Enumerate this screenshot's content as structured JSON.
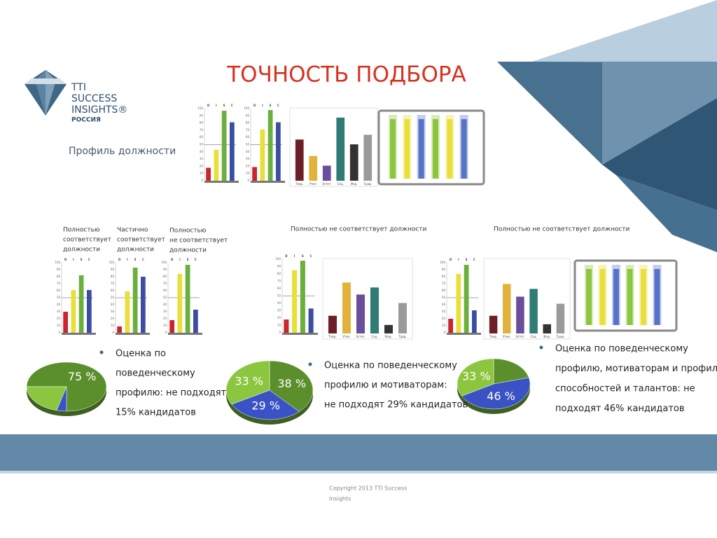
{
  "header": {
    "title": "ТОЧНОСТЬ ПОДБОРА",
    "logo": [
      "TTI",
      "SUCCESS",
      "INSIGHTS®",
      "РОССИЯ"
    ],
    "profile_label": "Профиль должности"
  },
  "captions": [
    {
      "lines": [
        "Полностью",
        "соответствует",
        "должности"
      ]
    },
    {
      "lines": [
        "Частично",
        "соответствует",
        "должности"
      ]
    },
    {
      "lines": [
        "Полностью",
        "не соответствует",
        "должности"
      ]
    },
    {
      "lines": [
        "Полностью не соответствует должности"
      ]
    },
    {
      "lines": [
        "Полностью не соответствует должности"
      ]
    }
  ],
  "bullets": [
    {
      "lines": [
        "Оценка по",
        "поведенческому",
        "профилю: не подходят",
        "15% кандидатов"
      ]
    },
    {
      "lines": [
        "Оценка по поведенческому",
        "профилю и мотиваторам:",
        "не подходят 29% кандидатов"
      ]
    },
    {
      "lines": [
        "Оценка по поведенческому",
        "профилю, мотиваторам и профилю",
        "способностей и талантов: не",
        "подходят 46% кандидатов"
      ]
    }
  ],
  "footer": {
    "lines": [
      "Copyright 2013 TTI Success",
      "Insights"
    ]
  },
  "chart_data": [
    {
      "type": "bar",
      "categories": [
        "D",
        "I",
        "S",
        "C"
      ],
      "values": [
        18,
        43,
        97,
        81
      ],
      "colors": [
        "#c8262e",
        "#e9df3a",
        "#6bb03c",
        "#3b4ea3"
      ],
      "ylim": [
        0,
        100
      ],
      "yticks": [
        0,
        10,
        20,
        30,
        40,
        50,
        60,
        70,
        80,
        90,
        100
      ],
      "midline": 50
    },
    {
      "type": "bar",
      "categories": [
        "D",
        "I",
        "S",
        "C"
      ],
      "values": [
        19,
        71,
        98,
        81
      ],
      "colors": [
        "#c8262e",
        "#e9df3a",
        "#6bb03c",
        "#3b4ea3"
      ],
      "ylim": [
        0,
        100
      ],
      "yticks": [
        0,
        10,
        20,
        30,
        40,
        50,
        60,
        70,
        80,
        90,
        100
      ],
      "midline": 50
    },
    {
      "type": "bar",
      "categories": [
        "Теор.",
        "Утил.",
        "Эстет.",
        "Соц.",
        "Инд.",
        "Трад."
      ],
      "values": [
        60,
        36,
        22,
        92,
        53,
        67
      ],
      "colors": [
        "#6d1f27",
        "#e2b23c",
        "#6a4d9d",
        "#2f7b76",
        "#333333",
        "#9a9a9a"
      ],
      "ylim": [
        0,
        100
      ]
    },
    {
      "type": "bar",
      "categories": [
        "D",
        "I",
        "S",
        "C"
      ],
      "values": [
        30,
        61,
        82,
        61
      ],
      "colors": [
        "#c8262e",
        "#e9df3a",
        "#6bb03c",
        "#3b4ea3"
      ],
      "ylim": [
        0,
        100
      ],
      "yticks": [
        0,
        10,
        20,
        30,
        40,
        50,
        60,
        70,
        80,
        90,
        100
      ],
      "midline": 50
    },
    {
      "type": "bar",
      "categories": [
        "D",
        "I",
        "S",
        "C"
      ],
      "values": [
        9,
        59,
        93,
        80
      ],
      "colors": [
        "#c8262e",
        "#e9df3a",
        "#6bb03c",
        "#3b4ea3"
      ],
      "ylim": [
        0,
        100
      ],
      "yticks": [
        0,
        10,
        20,
        30,
        40,
        50,
        60,
        70,
        80,
        90,
        100
      ],
      "midline": 50
    },
    {
      "type": "bar",
      "categories": [
        "D",
        "I",
        "S",
        "C"
      ],
      "values": [
        18,
        84,
        97,
        33
      ],
      "colors": [
        "#c8262e",
        "#e9df3a",
        "#6bb03c",
        "#3b4ea3"
      ],
      "ylim": [
        0,
        100
      ],
      "yticks": [
        0,
        10,
        20,
        30,
        40,
        50,
        60,
        70,
        80,
        90,
        100
      ],
      "midline": 50
    },
    {
      "type": "bar",
      "categories": [
        "D",
        "I",
        "S",
        "C"
      ],
      "values": [
        18,
        85,
        98,
        33
      ],
      "colors": [
        "#c8262e",
        "#e9df3a",
        "#6bb03c",
        "#3b4ea3"
      ],
      "ylim": [
        0,
        100
      ],
      "yticks": [
        0,
        10,
        20,
        30,
        40,
        50,
        60,
        70,
        80,
        90,
        100
      ],
      "midline": 50
    },
    {
      "type": "bar",
      "categories": [
        "Теор.",
        "Утил.",
        "Эстет.",
        "Соц.",
        "Инд.",
        "Трад."
      ],
      "values": [
        25,
        72,
        55,
        65,
        12,
        43
      ],
      "colors": [
        "#6d1f27",
        "#e2b23c",
        "#6a4d9d",
        "#2f7b76",
        "#333333",
        "#9a9a9a"
      ],
      "ylim": [
        0,
        100
      ]
    },
    {
      "type": "bar",
      "categories": [
        "D",
        "I",
        "S",
        "C"
      ],
      "values": [
        20,
        84,
        97,
        32
      ],
      "colors": [
        "#c8262e",
        "#e9df3a",
        "#6bb03c",
        "#3b4ea3"
      ],
      "ylim": [
        0,
        100
      ],
      "yticks": [
        0,
        10,
        20,
        30,
        40,
        50,
        60,
        70,
        80,
        90,
        100
      ],
      "midline": 50
    },
    {
      "type": "bar",
      "categories": [
        "Теор.",
        "Утил.",
        "Эстет.",
        "Соц.",
        "Инд.",
        "Трад."
      ],
      "values": [
        25,
        70,
        52,
        63,
        13,
        42
      ],
      "colors": [
        "#6d1f27",
        "#e2b23c",
        "#6a4d9d",
        "#2f7b76",
        "#333333",
        "#9a9a9a"
      ],
      "ylim": [
        0,
        100
      ]
    },
    {
      "type": "pie",
      "values": [
        75,
        4,
        21
      ],
      "value_labels": [
        "75 %",
        null,
        null
      ],
      "colors": [
        "#5a8f2c",
        "#3b52c4",
        "#8cc63f"
      ]
    },
    {
      "type": "pie",
      "values": [
        38,
        29,
        33
      ],
      "value_labels": [
        "38 %",
        "29 %",
        "33 %"
      ],
      "colors": [
        "#5a8f2c",
        "#3b52c4",
        "#8cc63f"
      ]
    },
    {
      "type": "pie",
      "values": [
        21,
        46,
        33
      ],
      "value_labels": [
        null,
        "46 %",
        "33 %"
      ],
      "colors": [
        "#5a8f2c",
        "#3b52c4",
        "#8cc63f"
      ]
    }
  ]
}
